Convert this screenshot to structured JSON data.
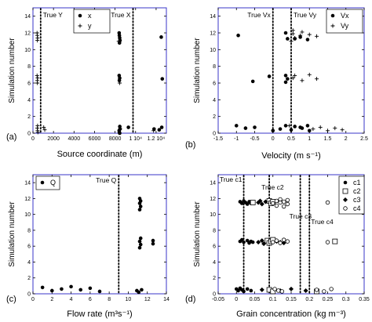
{
  "chart_data": [
    {
      "panel": "(a)",
      "type": "scatter",
      "xlabel": "Source coordinate (m)",
      "ylabel": "Simulation number",
      "xlim": [
        0,
        13000
      ],
      "ylim": [
        0,
        15
      ],
      "xticks": [
        0,
        2000,
        4000,
        6000,
        8000,
        10000,
        12000
      ],
      "xtick_labels": [
        "0",
        "2000",
        "4000",
        "6000",
        "8000",
        "1 10⁴",
        "1.2 10⁴"
      ],
      "yticks": [
        0,
        2,
        4,
        6,
        8,
        10,
        12,
        14
      ],
      "ytick_labels": [
        "0",
        "2",
        "4",
        "6",
        "8",
        "10",
        "12",
        "14"
      ],
      "legend": [
        {
          "name": "x",
          "marker": "dot"
        },
        {
          "name": "y",
          "marker": "plus"
        }
      ],
      "reference_lines": [
        {
          "label": "True Y",
          "x": 750
        },
        {
          "label": "True X",
          "x": 9750
        }
      ],
      "series": [
        {
          "name": "x",
          "marker": "dot",
          "x": [
            8400,
            8420,
            8450,
            8480,
            8430,
            8400,
            8450,
            8420,
            8460,
            8480,
            8400,
            8420,
            8450,
            9300,
            12500,
            12600,
            12550,
            11800,
            12300
          ],
          "y": [
            12.0,
            11.7,
            11.4,
            11.1,
            10.8,
            6.9,
            6.6,
            6.3,
            0.8,
            0.5,
            0.3,
            0.1,
            0.0,
            0.7,
            11.5,
            6.5,
            0.7,
            0.5,
            0.4
          ]
        },
        {
          "name": "y",
          "marker": "plus",
          "x": [
            400,
            420,
            450,
            430,
            400,
            450,
            420,
            430,
            450,
            420,
            450,
            480,
            1050,
            1150,
            8350,
            8450,
            8500,
            11750
          ],
          "y": [
            12.0,
            11.7,
            11.4,
            11.1,
            6.9,
            6.6,
            6.3,
            6.0,
            0.9,
            0.6,
            0.3,
            0.1,
            0.7,
            0.4,
            11.0,
            6.0,
            0.5,
            0.3
          ]
        }
      ]
    },
    {
      "panel": "(b)",
      "type": "scatter",
      "xlabel": "Velocity (m s⁻¹)",
      "ylabel": "Simulation number",
      "xlim": [
        -1.5,
        2.5
      ],
      "ylim": [
        0,
        15
      ],
      "xticks": [
        -1.5,
        -1,
        -0.5,
        0,
        0.5,
        1,
        1.5,
        2,
        2.5
      ],
      "xtick_labels": [
        "-1.5",
        "-1",
        "-0.5",
        "0",
        "0.5",
        "1",
        "1.5",
        "2",
        "2.5"
      ],
      "yticks": [
        0,
        2,
        4,
        6,
        8,
        10,
        12,
        14
      ],
      "ytick_labels": [
        "0",
        "2",
        "4",
        "6",
        "8",
        "10",
        "12",
        "14"
      ],
      "legend": [
        {
          "name": "Vx",
          "marker": "dot"
        },
        {
          "name": "Vy",
          "marker": "plus"
        }
      ],
      "reference_lines": [
        {
          "label": "True Vx",
          "x": 0
        },
        {
          "label": "True Vy",
          "x": 0.5
        }
      ],
      "series": [
        {
          "name": "Vx",
          "marker": "dot",
          "x": [
            -0.95,
            -0.55,
            -0.1,
            0.35,
            0.4,
            0.35,
            0.4,
            0.35,
            0.6,
            0.75,
            0.95,
            0.35,
            0.6,
            0.75,
            0.95,
            -1.0,
            -0.75,
            -0.5,
            0.0,
            0.2,
            0.5,
            0.8,
            1.0
          ],
          "y": [
            11.7,
            6.2,
            6.8,
            12.0,
            11.3,
            6.9,
            6.5,
            6.1,
            11.3,
            11.5,
            11.2,
            0.9,
            0.8,
            0.7,
            0.9,
            0.9,
            0.6,
            0.7,
            0.3,
            0.5,
            0.4,
            0.6,
            0.3
          ]
        },
        {
          "name": "Vy",
          "marker": "plus",
          "x": [
            0.5,
            0.55,
            0.55,
            0.6,
            0.75,
            0.8,
            1.0,
            1.2,
            0.55,
            0.6,
            0.8,
            1.0,
            1.2,
            0.45,
            1.1,
            1.3,
            1.5,
            1.7,
            1.9
          ],
          "y": [
            11.0,
            11.9,
            12.3,
            11.4,
            11.7,
            12.1,
            11.8,
            11.6,
            6.6,
            6.9,
            6.3,
            7.0,
            6.5,
            0.9,
            0.5,
            0.7,
            0.3,
            0.6,
            0.4
          ]
        }
      ]
    },
    {
      "panel": "(c)",
      "type": "scatter",
      "xlabel": "Flow rate (m³s⁻¹)",
      "ylabel": "Simulation number",
      "xlim": [
        0,
        14
      ],
      "ylim": [
        0,
        15
      ],
      "xticks": [
        0,
        2,
        4,
        6,
        8,
        10,
        12,
        14
      ],
      "xtick_labels": [
        "0",
        "2",
        "4",
        "6",
        "8",
        "10",
        "12",
        "14"
      ],
      "yticks": [
        0,
        2,
        4,
        6,
        8,
        10,
        12,
        14
      ],
      "ytick_labels": [
        "0",
        "2",
        "4",
        "6",
        "8",
        "10",
        "12",
        "14"
      ],
      "legend": [
        {
          "name": "Q",
          "marker": "dot"
        }
      ],
      "reference_lines": [
        {
          "label": "True Q",
          "x": 9
        }
      ],
      "series": [
        {
          "name": "Q",
          "marker": "dot",
          "x": [
            11.2,
            11.3,
            11.2,
            11.3,
            11.2,
            11.3,
            11.2,
            11.3,
            11.2,
            12.6,
            12.6,
            1.0,
            2.0,
            3.0,
            4.0,
            5.0,
            6.0,
            7.0,
            10.9,
            11.1,
            11.4
          ],
          "y": [
            12.0,
            11.7,
            11.4,
            11.0,
            10.6,
            7.0,
            6.6,
            6.2,
            5.8,
            6.7,
            6.3,
            0.8,
            0.4,
            0.6,
            0.9,
            0.5,
            0.7,
            0.3,
            0.4,
            0.2,
            0.5
          ]
        }
      ]
    },
    {
      "panel": "(d)",
      "type": "scatter",
      "xlabel": "Grain concentration (kg m⁻³)",
      "ylabel": "Simulation number",
      "xlim": [
        -0.05,
        0.35
      ],
      "ylim": [
        0,
        15
      ],
      "xticks": [
        -0.05,
        0,
        0.05,
        0.1,
        0.15,
        0.2,
        0.25,
        0.3,
        0.35
      ],
      "xtick_labels": [
        "-0.05",
        "0",
        "0.05",
        "0.1",
        "0.15",
        "0.2",
        "0.25",
        "0.3",
        "0.35"
      ],
      "yticks": [
        0,
        2,
        4,
        6,
        8,
        10,
        12,
        14
      ],
      "ytick_labels": [
        "0",
        "2",
        "4",
        "6",
        "8",
        "10",
        "12",
        "14"
      ],
      "legend": [
        {
          "name": "c1",
          "marker": "dot"
        },
        {
          "name": "c2",
          "marker": "square"
        },
        {
          "name": "c3",
          "marker": "diamond"
        },
        {
          "name": "c4",
          "marker": "circle"
        }
      ],
      "reference_lines": [
        {
          "label": "True c1",
          "x": 0.02
        },
        {
          "label": "True c2",
          "x": 0.09
        },
        {
          "label": "True c3",
          "x": 0.175
        },
        {
          "label": "True c4",
          "x": 0.2
        }
      ],
      "series": [
        {
          "name": "c1",
          "marker": "dot",
          "x": [
            0.01,
            0.015,
            0.02,
            0.025,
            0.03,
            0.035,
            0.04,
            0.01,
            0.015,
            0.02,
            0.03,
            0.035,
            0.04,
            0.045,
            0.0,
            0.005,
            0.01,
            0.015,
            0.02,
            0.03,
            0.04
          ],
          "y": [
            11.6,
            11.4,
            11.7,
            11.5,
            11.3,
            11.6,
            11.4,
            6.6,
            6.8,
            6.5,
            6.7,
            6.4,
            6.6,
            6.5,
            0.6,
            0.4,
            0.7,
            0.5,
            0.3,
            0.6,
            0.4
          ]
        },
        {
          "name": "c2",
          "marker": "square",
          "x": [
            0.045,
            0.09,
            0.095,
            0.1,
            0.085,
            0.09,
            0.095,
            0.1,
            0.09,
            0.1,
            0.22,
            0.27
          ],
          "y": [
            11.5,
            11.7,
            11.4,
            11.6,
            6.7,
            6.4,
            6.6,
            6.8,
            0.5,
            0.3,
            0.3,
            6.6
          ]
        },
        {
          "name": "c3",
          "marker": "diamond",
          "x": [
            0.06,
            0.065,
            0.07,
            0.08,
            0.06,
            0.07,
            0.075,
            0.11,
            0.12,
            0.13,
            0.07,
            0.12,
            0.15,
            0.19
          ],
          "y": [
            11.5,
            11.7,
            11.3,
            11.6,
            6.5,
            6.7,
            6.3,
            6.6,
            6.5,
            6.4,
            0.5,
            0.4,
            0.6,
            0.4
          ]
        },
        {
          "name": "c4",
          "marker": "circle",
          "x": [
            0.1,
            0.11,
            0.12,
            0.13,
            0.14,
            0.11,
            0.12,
            0.13,
            0.14,
            0.1,
            0.11,
            0.12,
            0.13,
            0.14,
            0.105,
            0.115,
            0.125,
            0.25,
            0.25,
            0.22,
            0.24,
            0.26
          ],
          "y": [
            11.4,
            11.7,
            11.5,
            11.6,
            11.3,
            11.1,
            11.9,
            11.0,
            11.8,
            6.5,
            6.7,
            6.4,
            6.8,
            6.6,
            0.6,
            0.4,
            0.3,
            11.5,
            6.5,
            0.5,
            0.3,
            0.6
          ]
        }
      ]
    }
  ]
}
